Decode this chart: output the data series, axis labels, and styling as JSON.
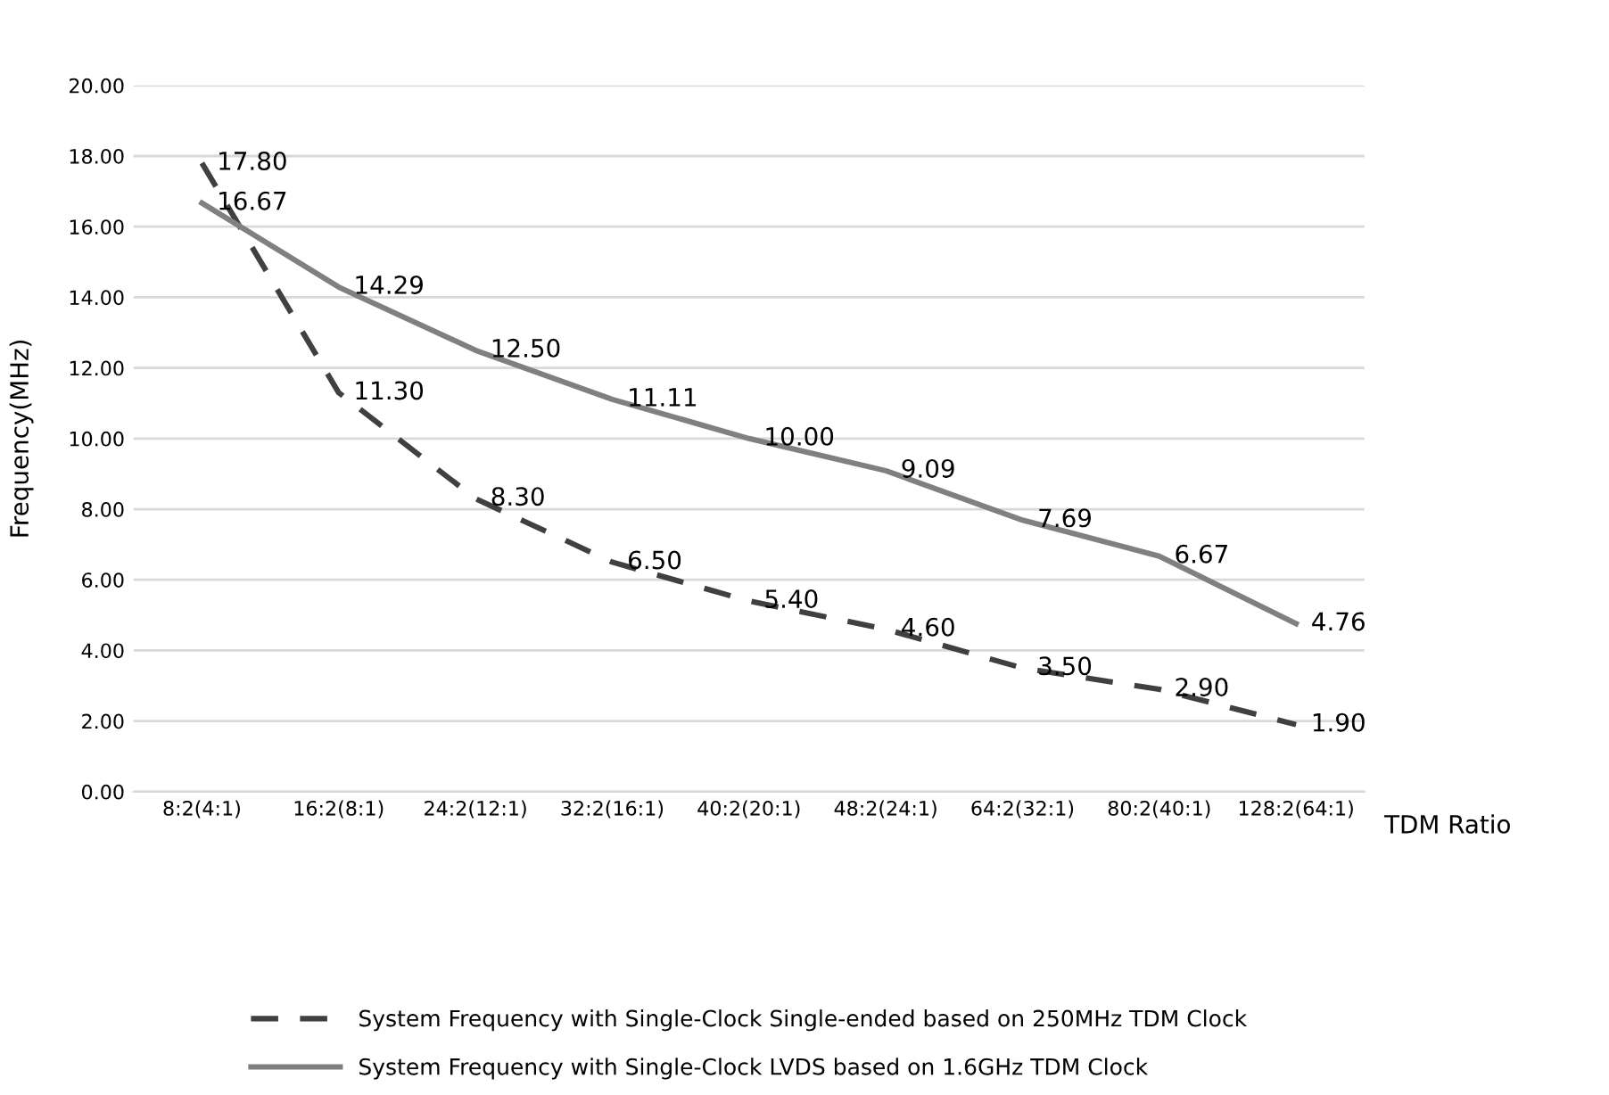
{
  "chart_data": {
    "type": "line",
    "ylabel": "Frequency(MHz)",
    "xlabel": "TDM Ratio",
    "categories": [
      "8:2(4:1)",
      "16:2(8:1)",
      "24:2(12:1)",
      "32:2(16:1)",
      "40:2(20:1)",
      "48:2(24:1)",
      "64:2(32:1)",
      "80:2(40:1)",
      "128:2(64:1)"
    ],
    "series": [
      {
        "name": "System Frequency with Single-Clock Single-ended based on 250MHz TDM Clock",
        "color": "#404040",
        "line_style": "dashed",
        "values": [
          17.8,
          11.3,
          8.3,
          6.5,
          5.4,
          4.6,
          3.5,
          2.9,
          1.9
        ],
        "value_labels": [
          "17.80",
          "11.30",
          "8.30",
          "6.50",
          "5.40",
          "4.60",
          "3.50",
          "2.90",
          "1.90"
        ]
      },
      {
        "name": "System Frequency with Single-Clock LVDS based on 1.6GHz TDM Clock",
        "color": "#808080",
        "line_style": "solid",
        "values": [
          16.67,
          14.29,
          12.5,
          11.11,
          10.0,
          9.09,
          7.69,
          6.67,
          4.76
        ],
        "value_labels": [
          "16.67",
          "14.29",
          "12.50",
          "11.11",
          "10.00",
          "9.09",
          "7.69",
          "6.67",
          "4.76"
        ]
      }
    ],
    "ylim": [
      0,
      20
    ],
    "yticks": [
      {
        "value": 0,
        "label": "0.00"
      },
      {
        "value": 2,
        "label": "2.00"
      },
      {
        "value": 4,
        "label": "4.00"
      },
      {
        "value": 6,
        "label": "6.00"
      },
      {
        "value": 8,
        "label": "8.00"
      },
      {
        "value": 10,
        "label": "10.00"
      },
      {
        "value": 12,
        "label": "12.00"
      },
      {
        "value": 14,
        "label": "14.00"
      },
      {
        "value": 16,
        "label": "16.00"
      },
      {
        "value": 18,
        "label": "18.00"
      },
      {
        "value": 20,
        "label": "20.00"
      }
    ],
    "grid": "y",
    "legend": "bottom",
    "marker": "none"
  }
}
